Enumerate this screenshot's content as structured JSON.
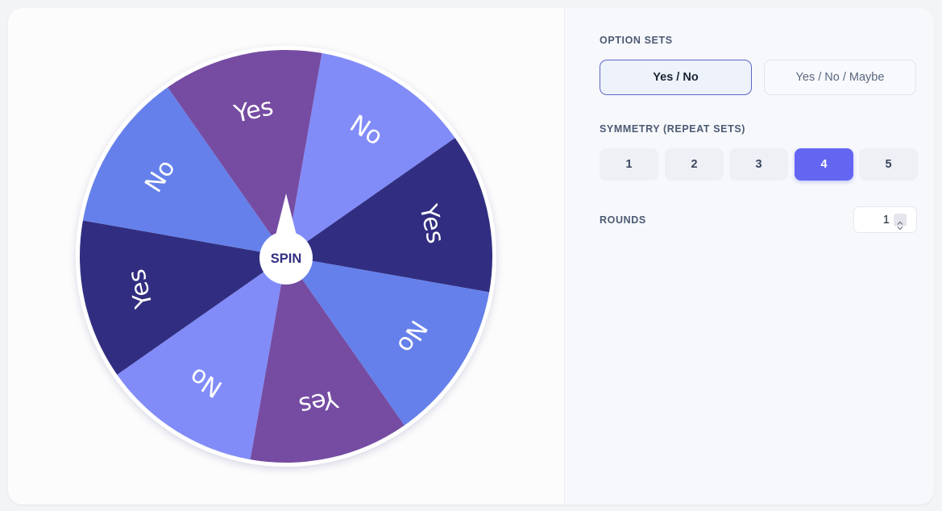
{
  "wheel": {
    "spin_label": "SPIN",
    "segment_labels": [
      "No",
      "Yes",
      "No",
      "Yes",
      "No",
      "Yes",
      "No",
      "Yes"
    ],
    "segment_colors": [
      "#818cf8",
      "#312e81",
      "#6580ea",
      "#754ca2",
      "#818cf8",
      "#312e81",
      "#6580ea",
      "#754ca2"
    ],
    "label_color": "#ffffff",
    "rim_color": "#ffffff",
    "hub_color": "#ffffff",
    "hub_text_color": "#312e81"
  },
  "settings": {
    "option_sets_label": "OPTION SETS",
    "option_sets": [
      {
        "label": "Yes / No",
        "selected": true
      },
      {
        "label": "Yes / No / Maybe",
        "selected": false
      }
    ],
    "symmetry_label": "SYMMETRY (REPEAT SETS)",
    "symmetry_options": [
      "1",
      "2",
      "3",
      "4",
      "5"
    ],
    "symmetry_selected": "4",
    "rounds_label": "ROUNDS",
    "rounds_value": "1"
  },
  "colors": {
    "accent": "#6366f1",
    "selected_border": "#5b67c9"
  },
  "icons": {
    "stepper": "up-down-chevron-icon",
    "pointer": "pointer-icon"
  }
}
